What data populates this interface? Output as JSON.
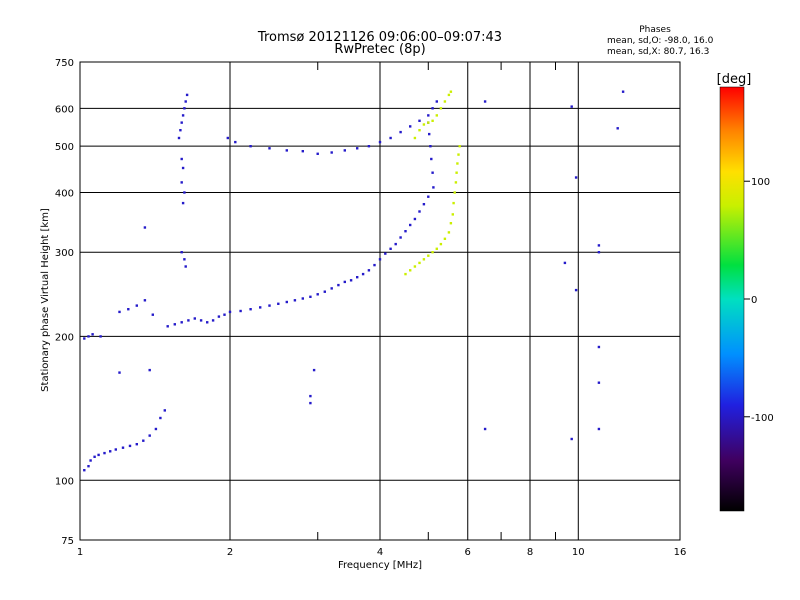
{
  "chart_data": {
    "type": "scatter",
    "title": "Tromsø 20121126 09:06:00–09:07:43",
    "subtitle": "RwPretec (8p)",
    "xlabel": "Frequency [MHz]",
    "ylabel": "Stationary phase Virtual Height [km]",
    "x_scale": "log",
    "y_scale": "log",
    "xlim": [
      1,
      16
    ],
    "ylim": [
      75,
      750
    ],
    "x_ticks": [
      1,
      2,
      4,
      6,
      8,
      10,
      16
    ],
    "x_tick_labels": [
      "1",
      "2",
      "4",
      "6",
      "8",
      "10",
      "16"
    ],
    "x_minor_ticks": [
      3,
      5,
      7,
      9
    ],
    "y_ticks": [
      75,
      100,
      200,
      300,
      400,
      500,
      600,
      750
    ],
    "y_tick_labels": [
      "75",
      "100",
      "200",
      "300",
      "400",
      "500",
      "600",
      "750"
    ],
    "grid": true,
    "legend_box": {
      "title": "Phases",
      "line1": "mean, sd,O: -98.0, 16.0",
      "line2": "mean, sd,X:  80.7, 16.3"
    },
    "colorbar": {
      "label": "[deg]",
      "range": [
        -180,
        180
      ],
      "ticks": [
        100,
        0,
        -100
      ],
      "tick_labels": [
        "100",
        "0",
        "-100"
      ],
      "colormap": "rainbow"
    },
    "series": [
      {
        "polarization": "O",
        "color_phase_deg": -98,
        "points": [
          [
            1.02,
            105
          ],
          [
            1.04,
            107
          ],
          [
            1.05,
            110
          ],
          [
            1.07,
            112
          ],
          [
            1.09,
            113
          ],
          [
            1.12,
            114
          ],
          [
            1.15,
            115
          ],
          [
            1.18,
            116
          ],
          [
            1.22,
            117
          ],
          [
            1.26,
            118
          ],
          [
            1.3,
            119
          ],
          [
            1.34,
            121
          ],
          [
            1.38,
            124
          ],
          [
            1.42,
            128
          ],
          [
            1.45,
            135
          ],
          [
            1.48,
            140
          ],
          [
            1.02,
            198
          ],
          [
            1.04,
            200
          ],
          [
            1.06,
            202
          ],
          [
            1.1,
            200
          ],
          [
            1.2,
            225
          ],
          [
            1.25,
            228
          ],
          [
            1.3,
            232
          ],
          [
            1.35,
            238
          ],
          [
            1.4,
            222
          ],
          [
            1.5,
            210
          ],
          [
            1.55,
            212
          ],
          [
            1.6,
            214
          ],
          [
            1.65,
            216
          ],
          [
            1.7,
            218
          ],
          [
            1.75,
            216
          ],
          [
            1.8,
            214
          ],
          [
            1.85,
            216
          ],
          [
            1.9,
            220
          ],
          [
            1.95,
            222
          ],
          [
            2.0,
            225
          ],
          [
            2.1,
            226
          ],
          [
            2.2,
            228
          ],
          [
            2.3,
            230
          ],
          [
            2.4,
            232
          ],
          [
            2.5,
            234
          ],
          [
            2.6,
            236
          ],
          [
            2.7,
            238
          ],
          [
            2.8,
            240
          ],
          [
            2.9,
            242
          ],
          [
            3.0,
            245
          ],
          [
            3.1,
            248
          ],
          [
            3.2,
            252
          ],
          [
            3.3,
            256
          ],
          [
            3.4,
            260
          ],
          [
            3.5,
            262
          ],
          [
            3.6,
            266
          ],
          [
            3.7,
            270
          ],
          [
            3.8,
            275
          ],
          [
            3.9,
            282
          ],
          [
            4.0,
            290
          ],
          [
            4.1,
            298
          ],
          [
            4.2,
            305
          ],
          [
            4.3,
            312
          ],
          [
            4.4,
            322
          ],
          [
            4.5,
            332
          ],
          [
            4.6,
            342
          ],
          [
            4.7,
            352
          ],
          [
            4.8,
            365
          ],
          [
            4.9,
            378
          ],
          [
            5.0,
            392
          ],
          [
            1.58,
            520
          ],
          [
            1.59,
            540
          ],
          [
            1.6,
            560
          ],
          [
            1.61,
            580
          ],
          [
            1.62,
            600
          ],
          [
            1.63,
            620
          ],
          [
            1.64,
            640
          ],
          [
            1.6,
            470
          ],
          [
            1.61,
            450
          ],
          [
            1.6,
            420
          ],
          [
            1.62,
            400
          ],
          [
            1.61,
            380
          ],
          [
            1.6,
            300
          ],
          [
            1.62,
            290
          ],
          [
            1.63,
            280
          ],
          [
            1.98,
            520
          ],
          [
            2.05,
            510
          ],
          [
            2.2,
            500
          ],
          [
            2.4,
            495
          ],
          [
            2.6,
            490
          ],
          [
            2.8,
            488
          ],
          [
            3.0,
            482
          ],
          [
            3.2,
            485
          ],
          [
            3.4,
            490
          ],
          [
            3.6,
            495
          ],
          [
            3.8,
            500
          ],
          [
            4.0,
            510
          ],
          [
            4.2,
            520
          ],
          [
            4.4,
            535
          ],
          [
            4.6,
            550
          ],
          [
            4.8,
            565
          ],
          [
            5.0,
            580
          ],
          [
            5.1,
            600
          ],
          [
            5.2,
            620
          ],
          [
            5.0,
            560
          ],
          [
            5.02,
            530
          ],
          [
            5.05,
            500
          ],
          [
            5.07,
            470
          ],
          [
            5.1,
            440
          ],
          [
            5.12,
            410
          ],
          [
            6.5,
            620
          ],
          [
            9.7,
            605
          ],
          [
            12.0,
            545
          ],
          [
            12.3,
            650
          ],
          [
            11.0,
            300
          ],
          [
            11.0,
            310
          ],
          [
            9.9,
            430
          ],
          [
            9.9,
            250
          ],
          [
            9.4,
            285
          ],
          [
            1.35,
            338
          ],
          [
            1.2,
            168
          ],
          [
            1.38,
            170
          ],
          [
            2.9,
            150
          ],
          [
            2.95,
            170
          ],
          [
            2.9,
            145
          ],
          [
            6.5,
            128
          ],
          [
            9.7,
            122
          ],
          [
            11.0,
            128
          ],
          [
            11.0,
            190
          ],
          [
            11.0,
            160
          ]
        ]
      },
      {
        "polarization": "X",
        "color_phase_deg": 80.7,
        "points": [
          [
            4.5,
            270
          ],
          [
            4.6,
            275
          ],
          [
            4.7,
            280
          ],
          [
            4.8,
            285
          ],
          [
            4.9,
            290
          ],
          [
            5.0,
            295
          ],
          [
            5.1,
            300
          ],
          [
            5.2,
            305
          ],
          [
            5.3,
            312
          ],
          [
            5.4,
            320
          ],
          [
            5.5,
            330
          ],
          [
            5.55,
            345
          ],
          [
            5.6,
            360
          ],
          [
            5.62,
            380
          ],
          [
            5.65,
            400
          ],
          [
            5.68,
            420
          ],
          [
            5.7,
            440
          ],
          [
            5.72,
            460
          ],
          [
            5.75,
            480
          ],
          [
            5.78,
            500
          ],
          [
            4.7,
            520
          ],
          [
            4.8,
            540
          ],
          [
            4.9,
            555
          ],
          [
            5.0,
            560
          ],
          [
            5.1,
            565
          ],
          [
            5.2,
            580
          ],
          [
            5.3,
            600
          ],
          [
            5.4,
            620
          ],
          [
            5.5,
            640
          ],
          [
            5.55,
            650
          ]
        ]
      }
    ]
  }
}
